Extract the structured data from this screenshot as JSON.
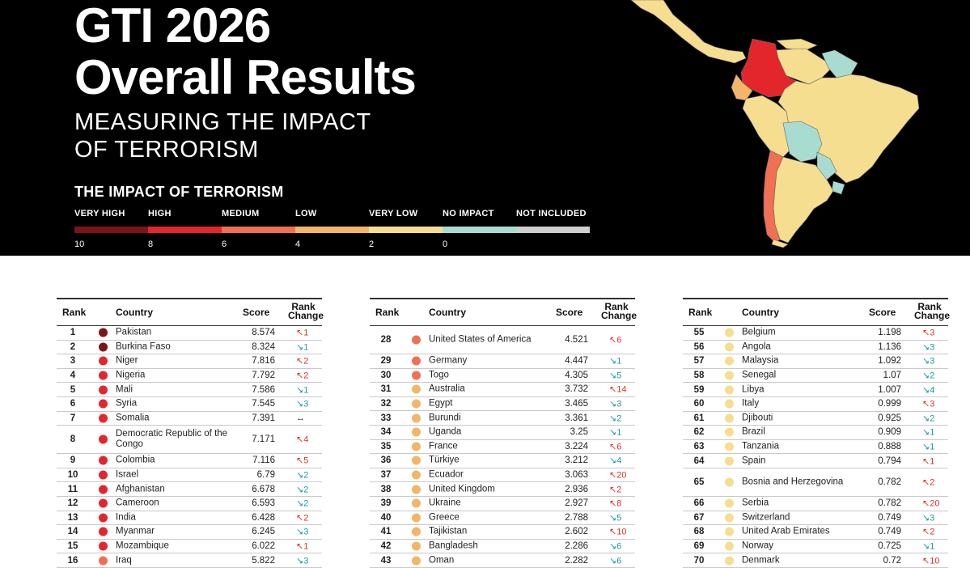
{
  "header": {
    "title_line1": "GTI 2026",
    "title_line2": "Overall Results",
    "subtitle_line1": "MEASURING THE IMPACT",
    "subtitle_line2": "OF TERRORISM"
  },
  "legend": {
    "title": "THE IMPACT OF TERRORISM",
    "categories": [
      {
        "label": "VERY HIGH",
        "color": "#7b1517"
      },
      {
        "label": "HIGH",
        "color": "#e3262b"
      },
      {
        "label": "MEDIUM",
        "color": "#ef7052"
      },
      {
        "label": "LOW",
        "color": "#f3b567"
      },
      {
        "label": "VERY LOW",
        "color": "#f5de8f"
      },
      {
        "label": "NO IMPACT",
        "color": "#a9dcd1"
      },
      {
        "label": "NOT INCLUDED",
        "color": "#cfcfcf"
      }
    ],
    "scale": [
      "10",
      "8",
      "6",
      "4",
      "2",
      "0"
    ]
  },
  "table_headers": {
    "rank": "Rank",
    "country": "Country",
    "score": "Score",
    "rank_change_1": "Rank",
    "rank_change_2": "Change"
  },
  "tables": [
    [
      {
        "rank": "1",
        "country": "Pakistan",
        "score": "8.574",
        "change": "↖1",
        "dir": "up",
        "color": "#7b1517"
      },
      {
        "rank": "2",
        "country": "Burkina Faso",
        "score": "8.324",
        "change": "↘1",
        "dir": "down",
        "color": "#7b1517"
      },
      {
        "rank": "3",
        "country": "Niger",
        "score": "7.816",
        "change": "↖2",
        "dir": "up",
        "color": "#e3262b"
      },
      {
        "rank": "4",
        "country": "Nigeria",
        "score": "7.792",
        "change": "↖2",
        "dir": "up",
        "color": "#e3262b"
      },
      {
        "rank": "5",
        "country": "Mali",
        "score": "7.586",
        "change": "↘1",
        "dir": "down",
        "color": "#e3262b"
      },
      {
        "rank": "6",
        "country": "Syria",
        "score": "7.545",
        "change": "↘3",
        "dir": "down",
        "color": "#e3262b"
      },
      {
        "rank": "7",
        "country": "Somalia",
        "score": "7.391",
        "change": "↔",
        "dir": "same",
        "color": "#e3262b"
      },
      {
        "rank": "8",
        "country": "Democratic Republic of the Congo",
        "score": "7.171",
        "change": "↖4",
        "dir": "up",
        "color": "#e3262b",
        "tall": true
      },
      {
        "rank": "9",
        "country": "Colombia",
        "score": "7.116",
        "change": "↖5",
        "dir": "up",
        "color": "#e3262b"
      },
      {
        "rank": "10",
        "country": "Israel",
        "score": "6.79",
        "change": "↘2",
        "dir": "down",
        "color": "#e3262b"
      },
      {
        "rank": "11",
        "country": "Afghanistan",
        "score": "6.678",
        "change": "↘2",
        "dir": "down",
        "color": "#e3262b"
      },
      {
        "rank": "12",
        "country": "Cameroon",
        "score": "6.593",
        "change": "↘2",
        "dir": "down",
        "color": "#e3262b"
      },
      {
        "rank": "13",
        "country": "India",
        "score": "6.428",
        "change": "↖2",
        "dir": "up",
        "color": "#e3262b"
      },
      {
        "rank": "14",
        "country": "Myanmar",
        "score": "6.245",
        "change": "↘3",
        "dir": "down",
        "color": "#e3262b"
      },
      {
        "rank": "15",
        "country": "Mozambique",
        "score": "6.022",
        "change": "↖1",
        "dir": "up",
        "color": "#e3262b"
      },
      {
        "rank": "16",
        "country": "Iraq",
        "score": "5.822",
        "change": "↘3",
        "dir": "down",
        "color": "#ef7052"
      }
    ],
    [
      {
        "rank": "28",
        "country": "United States of America",
        "score": "4.521",
        "change": "↖6",
        "dir": "up",
        "color": "#ef7052",
        "tall": true
      },
      {
        "rank": "29",
        "country": "Germany",
        "score": "4.447",
        "change": "↘1",
        "dir": "down",
        "color": "#ef7052"
      },
      {
        "rank": "30",
        "country": "Togo",
        "score": "4.305",
        "change": "↘5",
        "dir": "down",
        "color": "#ef7052"
      },
      {
        "rank": "31",
        "country": "Australia",
        "score": "3.732",
        "change": "↖14",
        "dir": "up",
        "color": "#f3b567"
      },
      {
        "rank": "32",
        "country": "Egypt",
        "score": "3.465",
        "change": "↘3",
        "dir": "down",
        "color": "#f3b567"
      },
      {
        "rank": "33",
        "country": "Burundi",
        "score": "3.361",
        "change": "↘2",
        "dir": "down",
        "color": "#f3b567"
      },
      {
        "rank": "34",
        "country": "Uganda",
        "score": "3.25",
        "change": "↘1",
        "dir": "down",
        "color": "#f3b567"
      },
      {
        "rank": "35",
        "country": "France",
        "score": "3.224",
        "change": "↖6",
        "dir": "up",
        "color": "#f3b567"
      },
      {
        "rank": "36",
        "country": "Türkiye",
        "score": "3.212",
        "change": "↘4",
        "dir": "down",
        "color": "#f3b567"
      },
      {
        "rank": "37",
        "country": "Ecuador",
        "score": "3.063",
        "change": "↖20",
        "dir": "up",
        "color": "#f3b567"
      },
      {
        "rank": "38",
        "country": "United Kingdom",
        "score": "2.936",
        "change": "↖2",
        "dir": "up",
        "color": "#f3b567"
      },
      {
        "rank": "39",
        "country": "Ukraine",
        "score": "2.927",
        "change": "↖8",
        "dir": "up",
        "color": "#f3b567"
      },
      {
        "rank": "40",
        "country": "Greece",
        "score": "2.788",
        "change": "↘5",
        "dir": "down",
        "color": "#f3b567"
      },
      {
        "rank": "41",
        "country": "Tajikistan",
        "score": "2.602",
        "change": "↖10",
        "dir": "up",
        "color": "#f3b567"
      },
      {
        "rank": "42",
        "country": "Bangladesh",
        "score": "2.286",
        "change": "↘6",
        "dir": "down",
        "color": "#f3b567"
      },
      {
        "rank": "43",
        "country": "Oman",
        "score": "2.282",
        "change": "↘6",
        "dir": "down",
        "color": "#f3b567"
      }
    ],
    [
      {
        "rank": "55",
        "country": "Belgium",
        "score": "1.198",
        "change": "↖3",
        "dir": "up",
        "color": "#f5de8f"
      },
      {
        "rank": "56",
        "country": "Angola",
        "score": "1.136",
        "change": "↘3",
        "dir": "down",
        "color": "#f5de8f"
      },
      {
        "rank": "57",
        "country": "Malaysia",
        "score": "1.092",
        "change": "↘3",
        "dir": "down",
        "color": "#f5de8f"
      },
      {
        "rank": "58",
        "country": "Senegal",
        "score": "1.07",
        "change": "↘2",
        "dir": "down",
        "color": "#f5de8f"
      },
      {
        "rank": "59",
        "country": "Libya",
        "score": "1.007",
        "change": "↘4",
        "dir": "down",
        "color": "#f5de8f"
      },
      {
        "rank": "60",
        "country": "Italy",
        "score": "0.999",
        "change": "↖3",
        "dir": "up",
        "color": "#f5de8f"
      },
      {
        "rank": "61",
        "country": "Djibouti",
        "score": "0.925",
        "change": "↘2",
        "dir": "down",
        "color": "#f5de8f"
      },
      {
        "rank": "62",
        "country": "Brazil",
        "score": "0.909",
        "change": "↘1",
        "dir": "down",
        "color": "#f5de8f"
      },
      {
        "rank": "63",
        "country": "Tanzania",
        "score": "0.888",
        "change": "↘1",
        "dir": "down",
        "color": "#f5de8f"
      },
      {
        "rank": "64",
        "country": "Spain",
        "score": "0.794",
        "change": "↖1",
        "dir": "up",
        "color": "#f5de8f"
      },
      {
        "rank": "65",
        "country": "Bosnia and Herzegovina",
        "score": "0.782",
        "change": "↖2",
        "dir": "up",
        "color": "#f5de8f",
        "tall": true
      },
      {
        "rank": "66",
        "country": "Serbia",
        "score": "0.782",
        "change": "↖20",
        "dir": "up",
        "color": "#f5de8f"
      },
      {
        "rank": "67",
        "country": "Switzerland",
        "score": "0.749",
        "change": "↘3",
        "dir": "down",
        "color": "#f5de8f"
      },
      {
        "rank": "68",
        "country": "United Arab Emirates",
        "score": "0.749",
        "change": "↖2",
        "dir": "up",
        "color": "#f5de8f"
      },
      {
        "rank": "69",
        "country": "Norway",
        "score": "0.725",
        "change": "↘1",
        "dir": "down",
        "color": "#f5de8f"
      },
      {
        "rank": "70",
        "country": "Denmark",
        "score": "0.72",
        "change": "↖10",
        "dir": "up",
        "color": "#f5de8f"
      }
    ]
  ]
}
